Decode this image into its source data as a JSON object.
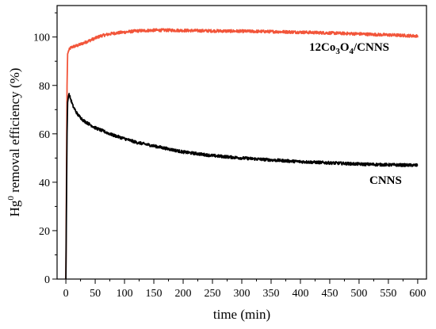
{
  "chart_data": {
    "type": "line",
    "xlabel": "time (min)",
    "ylabel": "Hg0 removal efficiency (%)",
    "ylabel_parts": {
      "base": "Hg",
      "sup": "0",
      "rest": " removal efficiency (%)"
    },
    "xlim": [
      -15,
      615
    ],
    "ylim": [
      0,
      113
    ],
    "x_ticks": [
      0,
      50,
      100,
      150,
      200,
      250,
      300,
      350,
      400,
      450,
      500,
      550,
      600
    ],
    "y_ticks": [
      0,
      20,
      40,
      60,
      80,
      100
    ],
    "grid": false,
    "series": [
      {
        "name": "12Co3O4/CNNS",
        "label_parts": [
          {
            "t": "12Co",
            "sub": false
          },
          {
            "t": "3",
            "sub": true
          },
          {
            "t": "O",
            "sub": false
          },
          {
            "t": "4",
            "sub": true
          },
          {
            "t": "/CNNS",
            "sub": false
          }
        ],
        "color": "#f2553a",
        "x": [
          0,
          1,
          2,
          3,
          5,
          8,
          12,
          20,
          30,
          40,
          50,
          60,
          80,
          100,
          120,
          150,
          180,
          200,
          230,
          260,
          300,
          330,
          360,
          400,
          430,
          460,
          500,
          530,
          560,
          580,
          600
        ],
        "y": [
          0,
          40,
          80,
          93,
          94.5,
          95.5,
          96,
          96.5,
          97.5,
          98.5,
          99.5,
          100.5,
          101.5,
          102,
          102.5,
          102.8,
          102.8,
          102.7,
          102.6,
          102.5,
          102.4,
          102.3,
          102.2,
          102,
          101.8,
          101.6,
          101.3,
          101,
          100.8,
          100.6,
          100.4
        ]
      },
      {
        "name": "CNNS",
        "color": "#000000",
        "x": [
          0,
          1,
          2,
          3,
          5,
          8,
          12,
          20,
          30,
          40,
          50,
          60,
          80,
          100,
          120,
          150,
          200,
          250,
          300,
          350,
          400,
          450,
          500,
          550,
          600
        ],
        "y": [
          0,
          30,
          60,
          73,
          76.5,
          74.5,
          71.5,
          68,
          65.5,
          64,
          62.5,
          61.5,
          59.5,
          58,
          56.5,
          55,
          52.5,
          51,
          50,
          49.2,
          48.5,
          48,
          47.5,
          47.2,
          47
        ]
      }
    ]
  }
}
